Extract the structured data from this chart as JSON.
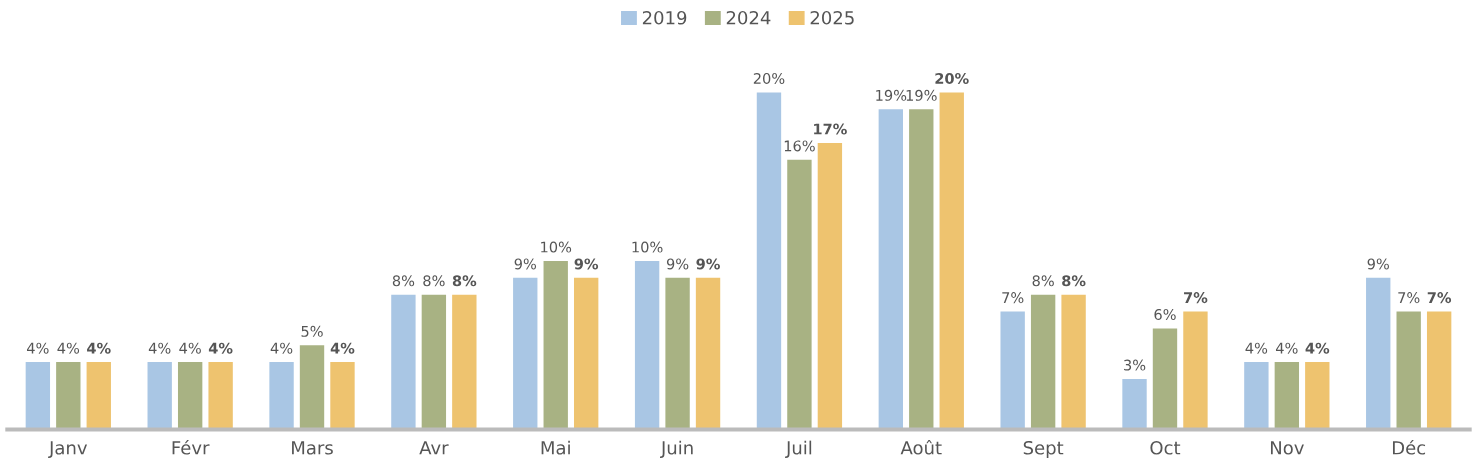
{
  "chart_data": {
    "type": "bar",
    "categories": [
      "Janv",
      "Févr",
      "Mars",
      "Avr",
      "Mai",
      "Juin",
      "Juil",
      "Août",
      "Sept",
      "Oct",
      "Nov",
      "Déc"
    ],
    "series": [
      {
        "name": "2019",
        "color": "#a9c6e4",
        "values": [
          4,
          4,
          4,
          8,
          9,
          10,
          20,
          19,
          7,
          3,
          4,
          9
        ],
        "value_labels": [
          "4%",
          "4%",
          "4%",
          "8%",
          "9%",
          "10%",
          "20%",
          "19%",
          "7%",
          "3%",
          "4%",
          "9%"
        ]
      },
      {
        "name": "2024",
        "color": "#a8b283",
        "values": [
          4,
          4,
          5,
          8,
          10,
          9,
          16,
          19,
          8,
          6,
          4,
          7
        ],
        "value_labels": [
          "4%",
          "4%",
          "5%",
          "8%",
          "10%",
          "9%",
          "16%",
          "19%",
          "8%",
          "6%",
          "4%",
          "7%"
        ]
      },
      {
        "name": "2025",
        "color": "#eec36f",
        "values": [
          4,
          4,
          4,
          8,
          9,
          9,
          17,
          20,
          8,
          7,
          4,
          7
        ],
        "value_labels": [
          "4%",
          "4%",
          "4%",
          "8%",
          "9%",
          "9%",
          "17%",
          "20%",
          "8%",
          "7%",
          "4%",
          "7%"
        ]
      }
    ],
    "legend": "top",
    "grid": false
  }
}
